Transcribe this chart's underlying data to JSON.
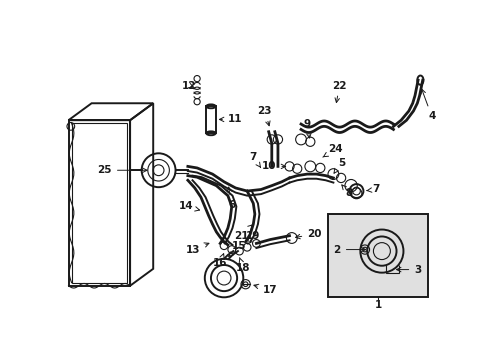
{
  "bg_color": "#ffffff",
  "line_color": "#1a1a1a",
  "inset_bg": "#e0e0e0",
  "fig_width": 4.89,
  "fig_height": 3.6,
  "dpi": 100,
  "lw_main": 1.4,
  "lw_thick": 2.0,
  "lw_thin": 0.8,
  "font_size": 7.5
}
